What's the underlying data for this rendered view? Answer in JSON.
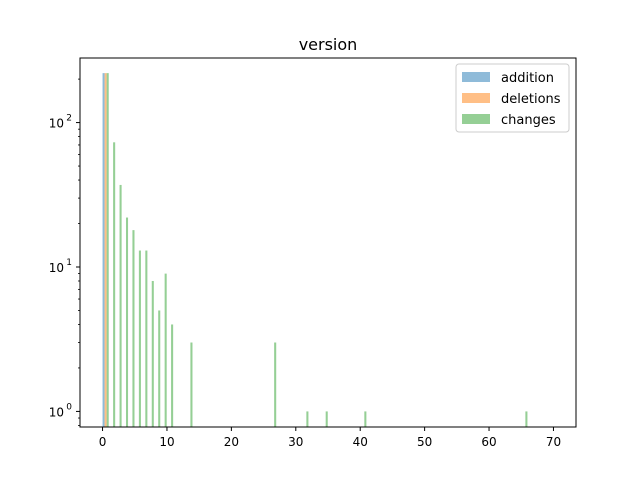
{
  "chart_data": {
    "type": "bar",
    "title": "version",
    "xlabel": "",
    "ylabel": "",
    "yscale": "log",
    "xlim": [
      -3.5,
      73.5
    ],
    "ylim": [
      0.78,
      280
    ],
    "x_ticks": [
      0,
      10,
      20,
      30,
      40,
      50,
      60,
      70
    ],
    "x_tick_labels": [
      "0",
      "10",
      "20",
      "30",
      "40",
      "50",
      "60",
      "70"
    ],
    "y_ticks": [
      1,
      10,
      100
    ],
    "y_tick_labels": [
      "10",
      "10",
      "10"
    ],
    "y_tick_exponents": [
      "0",
      "1",
      "2"
    ],
    "grid": false,
    "legend_position": "top-right",
    "series": [
      {
        "name": "addition",
        "color": "#1f77b4",
        "x": [
          0
        ],
        "values": [
          220
        ]
      },
      {
        "name": "deletions",
        "color": "#ff7f0e",
        "x": [
          0
        ],
        "values": [
          220
        ]
      },
      {
        "name": "changes",
        "color": "#2ca02c",
        "x": [
          0,
          1,
          2,
          3,
          4,
          5,
          6,
          7,
          8,
          9,
          10,
          13,
          26,
          31,
          34,
          40,
          65
        ],
        "values": [
          220,
          73,
          37,
          22,
          18,
          13,
          13,
          8,
          5,
          9,
          4,
          3,
          3,
          1,
          1,
          1,
          1
        ]
      }
    ]
  }
}
